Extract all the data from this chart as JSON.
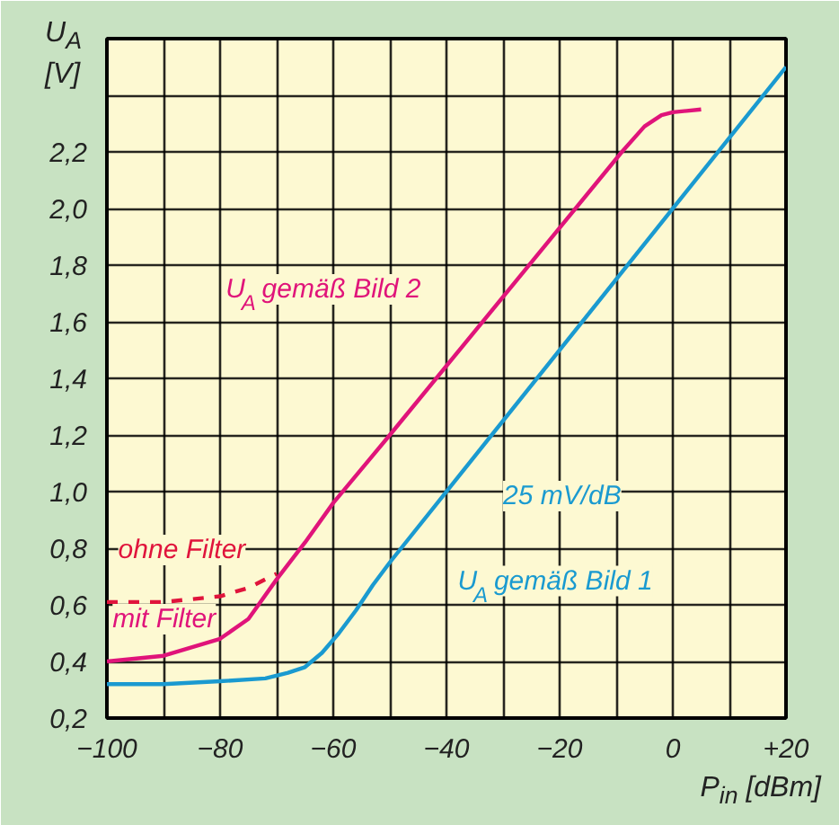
{
  "chart_data": {
    "type": "line",
    "xlabel": "P$_{in}$ [dBm]",
    "ylabel": "U$_{A}$ [V]",
    "series": [
      {
        "name": "U$_{A}$ gemäß Bild 1",
        "color": "#1a9ad0",
        "x": [
          -100,
          -90,
          -80,
          -72,
          -68,
          -65,
          -62,
          -59,
          -56,
          -53,
          -50,
          20
        ],
        "values": [
          0.32,
          0.32,
          0.33,
          0.34,
          0.36,
          0.38,
          0.43,
          0.5,
          0.58,
          0.67,
          0.75,
          2.5
        ]
      },
      {
        "name": "U$_{A}$ gemäß Bild 2",
        "color": "#e0147a",
        "x": [
          -100,
          -90,
          -80,
          -75,
          -70,
          -65,
          -60,
          -50,
          -9,
          -5,
          -2,
          0,
          5
        ],
        "values": [
          0.4,
          0.42,
          0.48,
          0.55,
          0.69,
          0.82,
          0.96,
          1.2,
          2.2,
          2.29,
          2.33,
          2.34,
          2.35
        ]
      },
      {
        "name": "ohne Filter",
        "color": "#e0143c",
        "line_style": "dashed",
        "x": [
          -100,
          -90,
          -80,
          -75,
          -70
        ],
        "values": [
          0.61,
          0.61,
          0.63,
          0.66,
          0.71
        ]
      }
    ],
    "annotations": [
      "mit Filter",
      "25 mV/dB"
    ],
    "xlim": [
      -100,
      20
    ],
    "ylim": [
      0.2,
      2.6
    ],
    "xticks": [
      {
        "value": -100,
        "label": "−100"
      },
      {
        "value": -90,
        "label": null
      },
      {
        "value": -80,
        "label": "−80"
      },
      {
        "value": -70,
        "label": null
      },
      {
        "value": -60,
        "label": "−60"
      },
      {
        "value": -50,
        "label": null
      },
      {
        "value": -40,
        "label": "−40"
      },
      {
        "value": -30,
        "label": null
      },
      {
        "value": -20,
        "label": "−20"
      },
      {
        "value": -10,
        "label": null
      },
      {
        "value": 0,
        "label": "0"
      },
      {
        "value": 10,
        "label": null
      },
      {
        "value": 20,
        "label": "+20"
      }
    ],
    "yticks": [
      {
        "value": 0.2,
        "label": "0,2"
      },
      {
        "value": 0.4,
        "label": "0,4"
      },
      {
        "value": 0.6,
        "label": "0,6"
      },
      {
        "value": 0.8,
        "label": "0,8"
      },
      {
        "value": 1.0,
        "label": "1,0"
      },
      {
        "value": 1.2,
        "label": "1,2"
      },
      {
        "value": 1.4,
        "label": "1,4"
      },
      {
        "value": 1.6,
        "label": "1,6"
      },
      {
        "value": 1.8,
        "label": "1,8"
      },
      {
        "value": 2.0,
        "label": "2,0"
      },
      {
        "value": 2.2,
        "label": "2,2"
      },
      {
        "value": 2.4,
        "label": null
      }
    ],
    "grid": true
  }
}
